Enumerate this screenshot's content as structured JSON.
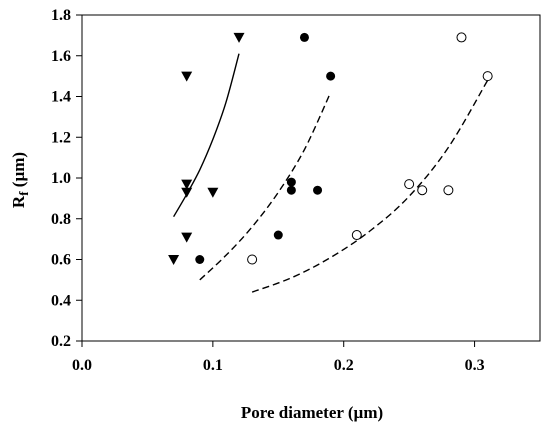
{
  "chart_data": {
    "type": "scatter",
    "title": "",
    "xlabel": "Pore diameter (µm)",
    "ylabel": {
      "base": "R",
      "subscript": "f",
      "unit": " (µm)"
    },
    "xlim": [
      0.0,
      0.35
    ],
    "ylim": [
      0.2,
      1.8
    ],
    "xticks": [
      "0.0",
      "0.1",
      "0.2",
      "0.3"
    ],
    "yticks": [
      "0.2",
      "0.4",
      "0.6",
      "0.8",
      "1.0",
      "1.2",
      "1.4",
      "1.6",
      "1.8"
    ],
    "grid": false,
    "series": [
      {
        "marker": "triangle-down",
        "color": "#000000",
        "points": [
          {
            "x": 0.07,
            "y": 0.6
          },
          {
            "x": 0.08,
            "y": 0.71
          },
          {
            "x": 0.08,
            "y": 0.93
          },
          {
            "x": 0.08,
            "y": 0.97
          },
          {
            "x": 0.08,
            "y": 1.5
          },
          {
            "x": 0.1,
            "y": 0.93
          },
          {
            "x": 0.12,
            "y": 1.69
          }
        ],
        "fit": {
          "style": "solid",
          "x": [
            0.07,
            0.08,
            0.09,
            0.1,
            0.11,
            0.12
          ],
          "y": [
            0.81,
            0.92,
            1.04,
            1.19,
            1.37,
            1.61
          ]
        }
      },
      {
        "marker": "filled-circle",
        "color": "#000000",
        "points": [
          {
            "x": 0.09,
            "y": 0.6
          },
          {
            "x": 0.15,
            "y": 0.72
          },
          {
            "x": 0.16,
            "y": 0.94
          },
          {
            "x": 0.16,
            "y": 0.98
          },
          {
            "x": 0.17,
            "y": 1.69
          },
          {
            "x": 0.18,
            "y": 0.94
          },
          {
            "x": 0.19,
            "y": 1.5
          }
        ],
        "fit": {
          "style": "dashed",
          "x": [
            0.09,
            0.11,
            0.13,
            0.15,
            0.17,
            0.19
          ],
          "y": [
            0.5,
            0.62,
            0.76,
            0.93,
            1.14,
            1.42
          ]
        }
      },
      {
        "marker": "open-circle",
        "color": "#000000",
        "points": [
          {
            "x": 0.13,
            "y": 0.6
          },
          {
            "x": 0.21,
            "y": 0.72
          },
          {
            "x": 0.25,
            "y": 0.97
          },
          {
            "x": 0.26,
            "y": 0.94
          },
          {
            "x": 0.28,
            "y": 0.94
          },
          {
            "x": 0.29,
            "y": 1.69
          },
          {
            "x": 0.31,
            "y": 1.5
          }
        ],
        "fit": {
          "style": "dashed",
          "x": [
            0.13,
            0.16,
            0.19,
            0.22,
            0.25,
            0.28,
            0.31
          ],
          "y": [
            0.44,
            0.51,
            0.61,
            0.74,
            0.91,
            1.15,
            1.48
          ]
        }
      }
    ]
  }
}
